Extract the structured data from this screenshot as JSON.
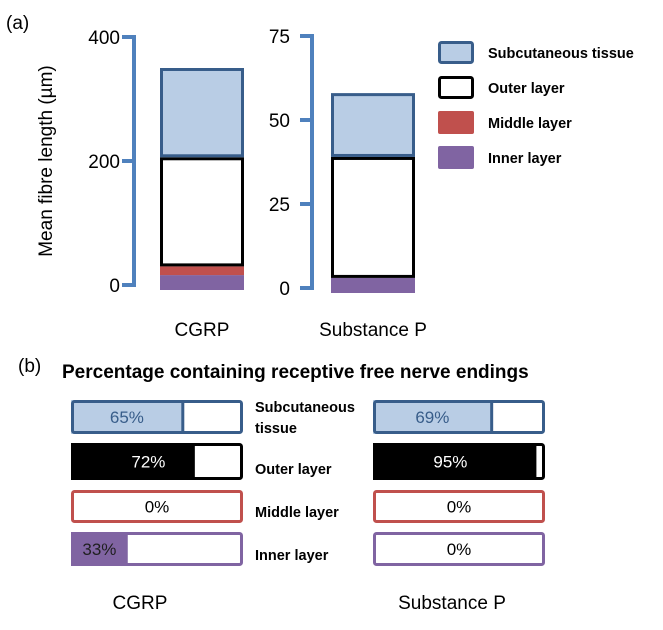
{
  "chart_data": [
    {
      "panel": "(a)",
      "type": "bar",
      "stacked": true,
      "ylabel": "Mean fibre length (µm)",
      "legend": {
        "placement": "right",
        "entries": [
          {
            "name": "Subcutaneous tissue",
            "fill": "#b9cde5",
            "stroke": "#385d8a"
          },
          {
            "name": "Outer layer",
            "fill": "#ffffff",
            "stroke": "#000000"
          },
          {
            "name": "Middle layer",
            "fill": "#c0504d",
            "stroke": "#c0504d"
          },
          {
            "name": "Inner layer",
            "fill": "#8064a2",
            "stroke": "#8064a2"
          }
        ]
      },
      "subplots": [
        {
          "category": "CGRP",
          "ylim": [
            0,
            400
          ],
          "yticks": [
            0,
            200,
            400
          ],
          "tick_labels": [
            "0",
            "200",
            "400"
          ],
          "stack_bottom_to_top": [
            {
              "layer": "Inner layer",
              "value": 16
            },
            {
              "layer": "Middle layer",
              "value": 14
            },
            {
              "layer": "Outer layer",
              "value": 176
            },
            {
              "layer": "Subcutaneous tissue",
              "value": 144
            }
          ],
          "total": 350
        },
        {
          "category": "Substance P",
          "ylim": [
            0,
            75
          ],
          "yticks": [
            0,
            25,
            50,
            75
          ],
          "tick_labels": [
            "0",
            "25",
            "50",
            "75"
          ],
          "stack_bottom_to_top": [
            {
              "layer": "Inner layer",
              "value": 3
            },
            {
              "layer": "Middle layer",
              "value": 0
            },
            {
              "layer": "Outer layer",
              "value": 36
            },
            {
              "layer": "Subcutaneous tissue",
              "value": 19
            }
          ],
          "total": 58
        }
      ]
    },
    {
      "panel": "(b)",
      "type": "bar",
      "title": "Percentage containing receptive free nerve endings",
      "row_labels": [
        "Subcutaneous tissue",
        "Outer layer",
        "Middle layer",
        "Inner layer"
      ],
      "row_label_lines": [
        [
          "Subcutaneous",
          "tissue"
        ],
        [
          "Outer layer"
        ],
        [
          "Middle layer"
        ],
        [
          "Inner layer"
        ]
      ],
      "groups": [
        {
          "name": "CGRP",
          "values": [
            65,
            72,
            0,
            33
          ],
          "labels": [
            "65%",
            "72%",
            "0%",
            "33%"
          ]
        },
        {
          "name": "Substance P",
          "values": [
            69,
            95,
            0,
            0
          ],
          "labels": [
            "69%",
            "95%",
            "0%",
            "0%"
          ]
        }
      ],
      "row_styles": [
        {
          "fill": "#b9cde5",
          "stroke": "#385d8a",
          "text": "#385d8a"
        },
        {
          "fill": "#000000",
          "stroke": "#000000",
          "text": "#ffffff"
        },
        {
          "fill": "#c0504d",
          "stroke": "#c0504d",
          "text": "#000000"
        },
        {
          "fill": "#8064a2",
          "stroke": "#8064a2",
          "text": "#1f1f1f"
        }
      ],
      "unit": "%",
      "range": [
        0,
        100
      ]
    }
  ],
  "axis_color": "#4f81bd"
}
